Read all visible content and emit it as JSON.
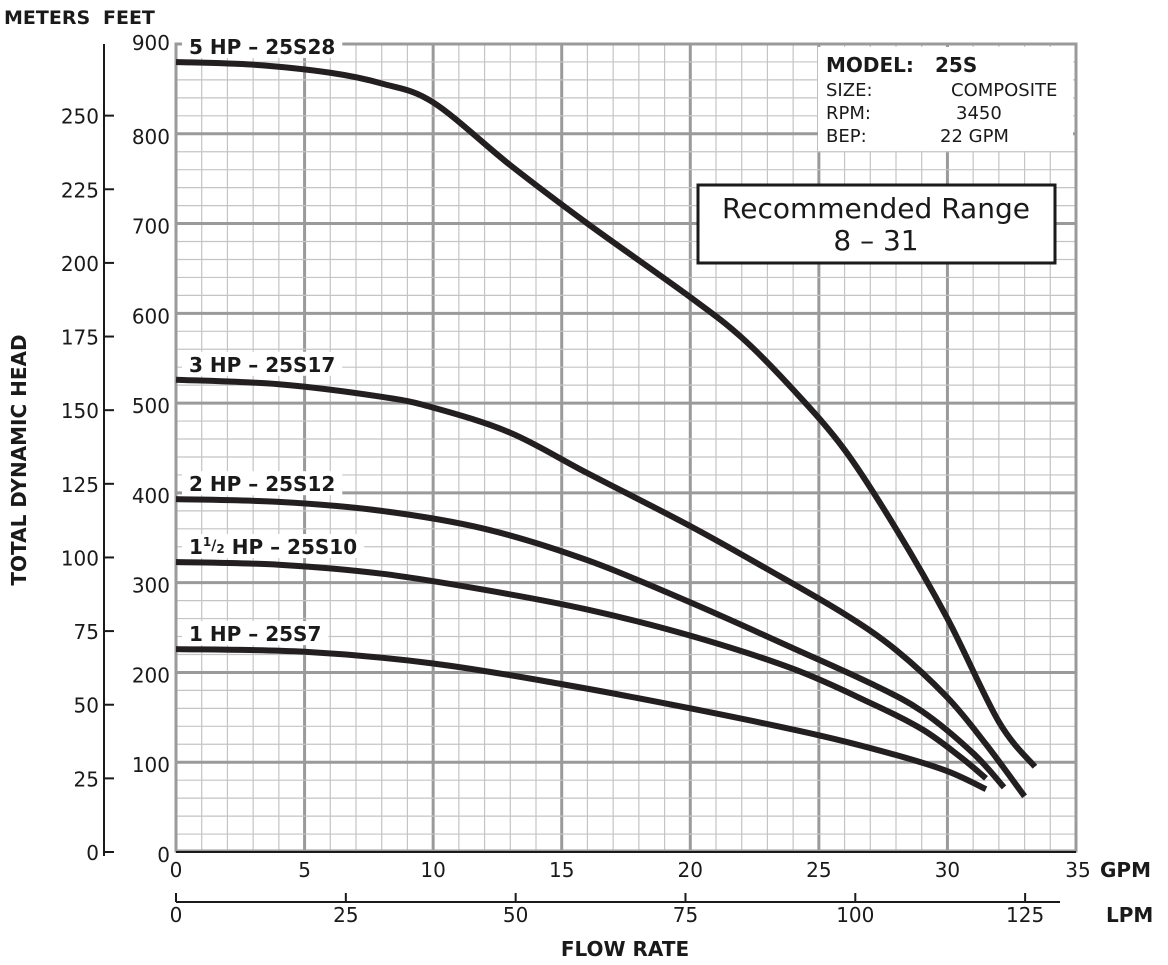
{
  "chart_data": {
    "type": "line",
    "axis_headers": {
      "left": "METERS",
      "right": "FEET"
    },
    "ylabel": "TOTAL DYNAMIC HEAD",
    "xlabel": "FLOW RATE",
    "x_unit": "GPM",
    "x2_unit": "LPM",
    "xlim": [
      0,
      35
    ],
    "x_ticks": [
      0,
      5,
      10,
      15,
      20,
      25,
      30,
      35
    ],
    "x2_ticks": [
      0,
      25,
      50,
      75,
      100,
      125
    ],
    "ylim_feet": [
      0,
      900
    ],
    "y_ticks_feet": [
      0,
      100,
      200,
      300,
      400,
      500,
      600,
      700,
      800,
      900
    ],
    "y_ticks_meters": [
      0,
      25,
      50,
      75,
      100,
      125,
      150,
      175,
      200,
      225,
      250
    ],
    "grid": true,
    "info": {
      "model_label": "MODEL:",
      "model_value": "25S",
      "size_label": "SIZE:",
      "size_value": "COMPOSITE",
      "rpm_label": "RPM:",
      "rpm_value": "3450",
      "bep_label": "BEP:",
      "bep_value": "22 GPM"
    },
    "recommended": {
      "title": "Recommended Range",
      "range": "8 – 31"
    },
    "series": [
      {
        "name": "5 HP – 25S28",
        "label_main": "5 HP – 25S28",
        "label_sup": "",
        "label_frac": "",
        "label_rest": "",
        "x": [
          0,
          3,
          6,
          8,
          10,
          13,
          16,
          20,
          22,
          24,
          26,
          28,
          30,
          32,
          33.4
        ],
        "y": [
          880,
          877,
          868,
          856,
          835,
          765,
          700,
          618,
          573,
          515,
          448,
          360,
          260,
          145,
          95
        ]
      },
      {
        "name": "3 HP – 25S17",
        "label_main": "3 HP – 25S17",
        "label_sup": "",
        "label_frac": "",
        "label_rest": "",
        "x": [
          0,
          4,
          8,
          10,
          13,
          16,
          20,
          23,
          26,
          28,
          30,
          31.5,
          33
        ],
        "y": [
          526,
          521,
          507,
          495,
          467,
          422,
          363,
          315,
          265,
          225,
          172,
          120,
          62
        ]
      },
      {
        "name": "2 HP – 25S12",
        "label_main": "2 HP – 25S12",
        "label_sup": "",
        "label_frac": "",
        "label_rest": "",
        "x": [
          0,
          4,
          8,
          12,
          16,
          20,
          24,
          27,
          29,
          31,
          32.2
        ],
        "y": [
          393,
          390,
          380,
          360,
          325,
          278,
          227,
          188,
          157,
          110,
          72
        ]
      },
      {
        "name": "1½ HP – 25S10",
        "label_main": "1",
        "label_sup": "1",
        "label_frac": "/",
        "label_rest": "2 HP – 25S10",
        "x": [
          0,
          4,
          8,
          12,
          16,
          20,
          24,
          27,
          29,
          30.5,
          31.5
        ],
        "y": [
          323,
          320,
          310,
          292,
          270,
          241,
          204,
          166,
          137,
          106,
          82
        ]
      },
      {
        "name": "1 HP – 25S7",
        "label_main": "1 HP – 25S7",
        "label_sup": "",
        "label_frac": "",
        "label_rest": "",
        "x": [
          0,
          5,
          10,
          15,
          20,
          25,
          28,
          30,
          31.5
        ],
        "y": [
          226,
          223,
          210,
          187,
          160,
          130,
          108,
          90,
          70
        ]
      }
    ]
  }
}
